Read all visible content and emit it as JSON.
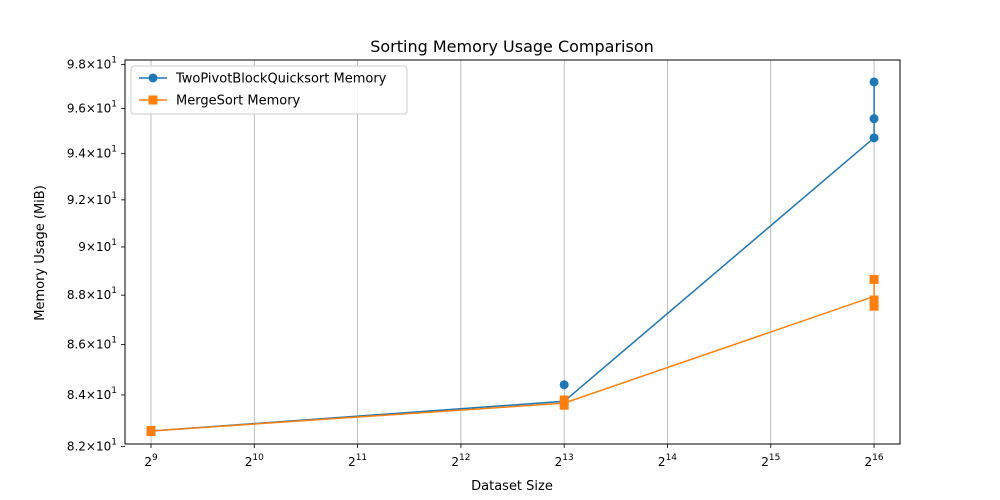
{
  "chart_data": {
    "type": "line",
    "title": "Sorting Memory Usage Comparison",
    "xlabel": "Dataset Size",
    "ylabel": "Memory Usage (MiB)",
    "x_scale": "log2",
    "y_scale": "log",
    "xlim": [
      430,
      78000
    ],
    "ylim": [
      82.1,
      98.2
    ],
    "x_ticks": [
      512,
      1024,
      2048,
      4096,
      8192,
      16384,
      32768,
      65536
    ],
    "x_tick_labels": [
      {
        "base": "2",
        "exp": "9"
      },
      {
        "base": "2",
        "exp": "10"
      },
      {
        "base": "2",
        "exp": "11"
      },
      {
        "base": "2",
        "exp": "12"
      },
      {
        "base": "2",
        "exp": "13"
      },
      {
        "base": "2",
        "exp": "14"
      },
      {
        "base": "2",
        "exp": "15"
      },
      {
        "base": "2",
        "exp": "16"
      }
    ],
    "y_ticks": [
      82,
      84,
      86,
      88,
      90,
      92,
      94,
      96,
      98
    ],
    "y_tick_labels": [
      {
        "mant": "8.2",
        "base": "10",
        "exp": "1"
      },
      {
        "mant": "8.4",
        "base": "10",
        "exp": "1"
      },
      {
        "mant": "8.6",
        "base": "10",
        "exp": "1"
      },
      {
        "mant": "8.8",
        "base": "10",
        "exp": "1"
      },
      {
        "mant": "9",
        "base": "10",
        "exp": "1"
      },
      {
        "mant": "9.2",
        "base": "10",
        "exp": "1"
      },
      {
        "mant": "9.4",
        "base": "10",
        "exp": "1"
      },
      {
        "mant": "9.6",
        "base": "10",
        "exp": "1"
      },
      {
        "mant": "9.8",
        "base": "10",
        "exp": "1"
      }
    ],
    "grid": "x-major",
    "legend_position": "top-left",
    "series": [
      {
        "name": "TwoPivotBlockQuicksort Memory",
        "color": "#1f77b4",
        "marker": "circle",
        "points": [
          {
            "x": 512,
            "y": 82.6
          },
          {
            "x": 512,
            "y": 82.62
          },
          {
            "x": 8192,
            "y": 83.75
          },
          {
            "x": 8192,
            "y": 84.4
          },
          {
            "x": 65536,
            "y": 94.7
          },
          {
            "x": 65536,
            "y": 95.55
          },
          {
            "x": 65536,
            "y": 97.2
          }
        ],
        "line": [
          {
            "x": 512,
            "y": 82.6
          },
          {
            "x": 8192,
            "y": 83.75
          },
          {
            "x": 65536,
            "y": 94.7
          },
          {
            "x": 65536,
            "y": 97.2
          }
        ]
      },
      {
        "name": "MergeSort Memory",
        "color": "#ff7f0e",
        "marker": "square",
        "points": [
          {
            "x": 512,
            "y": 82.58
          },
          {
            "x": 512,
            "y": 82.62
          },
          {
            "x": 8192,
            "y": 83.6
          },
          {
            "x": 8192,
            "y": 83.8
          },
          {
            "x": 65536,
            "y": 87.55
          },
          {
            "x": 65536,
            "y": 87.8
          },
          {
            "x": 65536,
            "y": 88.65
          }
        ],
        "line": [
          {
            "x": 512,
            "y": 82.6
          },
          {
            "x": 8192,
            "y": 83.68
          },
          {
            "x": 65536,
            "y": 87.95
          },
          {
            "x": 65536,
            "y": 88.65
          },
          {
            "x": 65536,
            "y": 87.55
          }
        ]
      }
    ]
  }
}
